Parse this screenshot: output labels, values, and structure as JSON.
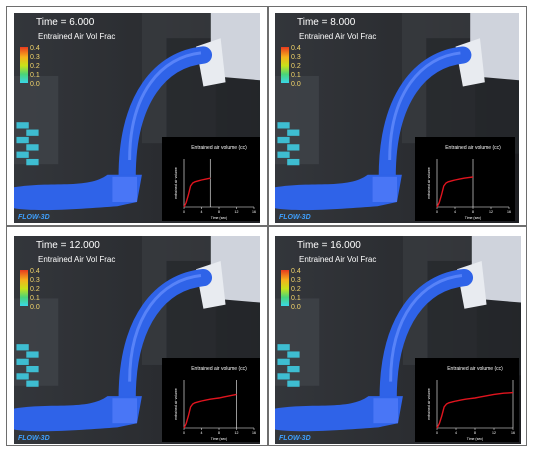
{
  "panels": [
    {
      "time_label": "Time = 6.000",
      "field_label": "Entrained Air Vol Frac",
      "legend_ticks": [
        "0.4",
        "0.3",
        "0.2",
        "0.1",
        "0.0"
      ],
      "brand": "FLOW-3D",
      "inset": {
        "title": "Entrained air volume (cc)",
        "ylabel": "entrained air volume",
        "xlabel": "Time (sec)",
        "x_ticks": [
          "0",
          "4",
          "8",
          "12",
          "16"
        ],
        "current_time": 6,
        "curve_x": [
          0,
          0.5,
          1,
          1.5,
          2,
          2.5,
          3,
          3.5,
          4,
          5,
          6
        ],
        "curve_y": [
          0,
          0.15,
          0.4,
          0.7,
          0.8,
          0.84,
          0.86,
          0.88,
          0.9,
          0.93,
          0.96
        ]
      }
    },
    {
      "time_label": "Time = 8.000",
      "field_label": "Entrained Air Vol Frac",
      "legend_ticks": [
        "0.4",
        "0.3",
        "0.2",
        "0.1",
        "0.0"
      ],
      "brand": "FLOW-3D",
      "inset": {
        "title": "Entrained air volume (cc)",
        "ylabel": "entrained air volume",
        "xlabel": "Time (sec)",
        "x_ticks": [
          "0",
          "4",
          "8",
          "12",
          "16"
        ],
        "current_time": 8,
        "curve_x": [
          0,
          0.5,
          1,
          1.5,
          2,
          2.5,
          3,
          3.5,
          4,
          5,
          6,
          7,
          8
        ],
        "curve_y": [
          0,
          0.15,
          0.4,
          0.7,
          0.8,
          0.84,
          0.86,
          0.88,
          0.9,
          0.93,
          0.96,
          0.98,
          1.0
        ]
      }
    },
    {
      "time_label": "Time = 12.000",
      "field_label": "Entrained Air Vol Frac",
      "legend_ticks": [
        "0.4",
        "0.3",
        "0.2",
        "0.1",
        "0.0"
      ],
      "brand": "FLOW-3D",
      "inset": {
        "title": "Entrained air volume (cc)",
        "ylabel": "entrained air volume",
        "xlabel": "Time (sec)",
        "x_ticks": [
          "0",
          "4",
          "8",
          "12",
          "16"
        ],
        "current_time": 12,
        "curve_x": [
          0,
          0.5,
          1,
          1.5,
          2,
          2.5,
          3,
          3.5,
          4,
          5,
          6,
          7,
          8,
          9,
          10,
          11,
          12
        ],
        "curve_y": [
          0,
          0.15,
          0.4,
          0.7,
          0.8,
          0.84,
          0.86,
          0.88,
          0.9,
          0.93,
          0.96,
          0.98,
          1.0,
          1.03,
          1.06,
          1.09,
          1.12
        ]
      }
    },
    {
      "time_label": "Time = 16.000",
      "field_label": "Entrained Air Vol Frac",
      "legend_ticks": [
        "0.4",
        "0.3",
        "0.2",
        "0.1",
        "0.0"
      ],
      "brand": "FLOW-3D",
      "inset": {
        "title": "Entrained air volume (cc)",
        "ylabel": "entrained air volume",
        "xlabel": "Time (sec)",
        "x_ticks": [
          "0",
          "4",
          "8",
          "12",
          "16"
        ],
        "current_time": 16,
        "curve_x": [
          0,
          0.5,
          1,
          1.5,
          2,
          2.5,
          3,
          3.5,
          4,
          5,
          6,
          7,
          8,
          9,
          10,
          11,
          12,
          13,
          14,
          15,
          16
        ],
        "curve_y": [
          0,
          0.15,
          0.4,
          0.7,
          0.8,
          0.84,
          0.86,
          0.88,
          0.9,
          0.93,
          0.96,
          0.98,
          1.0,
          1.03,
          1.06,
          1.09,
          1.12,
          1.14,
          1.16,
          1.17,
          1.18
        ]
      }
    }
  ],
  "colors": {
    "fluid": "#2f63e8",
    "curve": "#e0141e",
    "legend_text": "#f2d46b",
    "brand": "#3fa0ff"
  }
}
